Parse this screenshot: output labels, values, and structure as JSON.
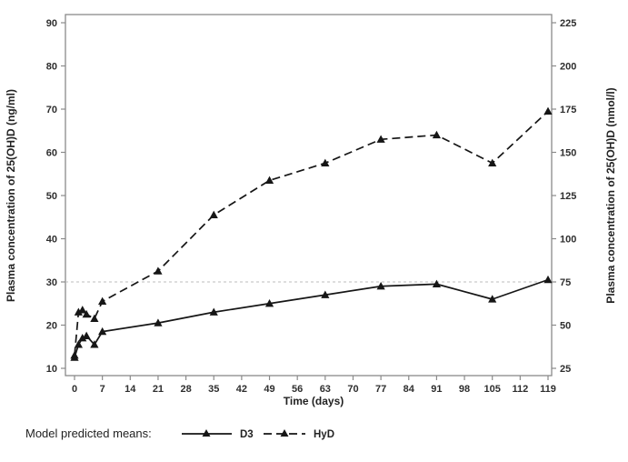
{
  "chart_data": {
    "type": "line",
    "title": "",
    "xlabel": "Time (days)",
    "ylabel_left": "Plasma concentration of 25(OH)D (ng/ml)",
    "ylabel_right": "Plasma concentration of 25(OH)D (nmol/l)",
    "x": [
      0,
      1,
      2,
      3,
      5,
      7,
      21,
      35,
      49,
      63,
      77,
      91,
      105,
      119
    ],
    "series": [
      {
        "name": "D3",
        "line_style": "solid",
        "marker": "filled-triangle-up",
        "values": [
          12.5,
          15.5,
          17,
          17.5,
          15.5,
          18.5,
          20.5,
          23,
          25,
          27,
          29,
          29.5,
          26,
          30.5
        ]
      },
      {
        "name": "HyD",
        "line_style": "dashed",
        "marker": "filled-triangle-up",
        "values": [
          13,
          23,
          23.5,
          22.5,
          21.5,
          25.5,
          32.5,
          45.5,
          53.5,
          57.5,
          63,
          64,
          57.5,
          69.5
        ]
      }
    ],
    "x_axis": {
      "label": "Time (days)",
      "ticks": [
        0,
        7,
        14,
        21,
        28,
        35,
        42,
        49,
        56,
        63,
        70,
        77,
        84,
        91,
        98,
        105,
        112,
        119
      ],
      "range": [
        0,
        119
      ]
    },
    "left_axis": {
      "label": "Plasma concentration of 25(OH)D (ng/ml)",
      "ticks": [
        10,
        20,
        30,
        40,
        50,
        60,
        70,
        80,
        90
      ],
      "range": [
        10,
        90
      ]
    },
    "right_axis": {
      "label": "Plasma concentration of 25(OH)D (nmol/l)",
      "ticks": [
        25,
        50,
        75,
        100,
        125,
        150,
        175,
        200,
        225
      ],
      "range": [
        25,
        225
      ],
      "conversion_factor_from_left": 2.5
    },
    "reference_line": {
      "axis": "left",
      "value": 30,
      "style": "dashed"
    },
    "legend": {
      "position": "bottom-left",
      "prefix": "Model predicted means:",
      "entries": [
        {
          "label": "D3",
          "line_style": "solid",
          "marker": "filled-triangle-up"
        },
        {
          "label": "HyD",
          "line_style": "dashed",
          "marker": "filled-triangle-up"
        }
      ]
    },
    "grid": false,
    "colors": {
      "series": "#161616",
      "frame": "#8a8a8a",
      "tick_text": "#2e2e2e",
      "reference_line": "#bdbdbd",
      "background": "#ffffff"
    }
  }
}
